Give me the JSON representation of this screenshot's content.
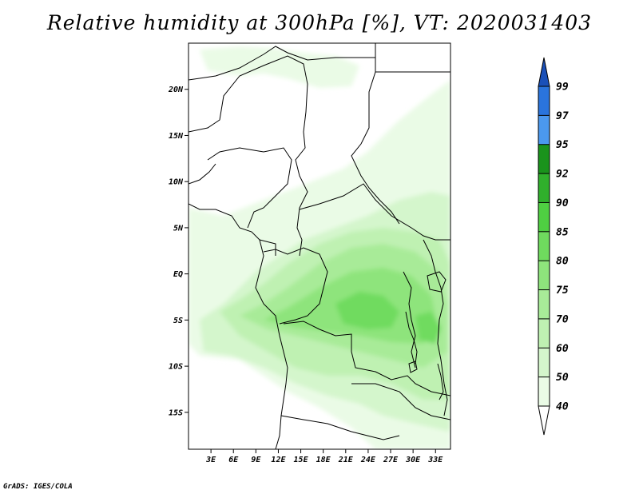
{
  "title": "Relative humidity at 300hPa [%], VT: 2020031403",
  "credit": "GrADS: IGES/COLA",
  "map": {
    "lat_range": [
      -19,
      25
    ],
    "lon_range": [
      0,
      35
    ],
    "lat_ticks": [
      {
        "value": 20,
        "label": "20N"
      },
      {
        "value": 15,
        "label": "15N"
      },
      {
        "value": 10,
        "label": "10N"
      },
      {
        "value": 5,
        "label": "5N"
      },
      {
        "value": 0,
        "label": "EQ"
      },
      {
        "value": -5,
        "label": "5S"
      },
      {
        "value": -10,
        "label": "10S"
      },
      {
        "value": -15,
        "label": "15S"
      }
    ],
    "lon_ticks": [
      {
        "value": 3,
        "label": "3E"
      },
      {
        "value": 6,
        "label": "6E"
      },
      {
        "value": 9,
        "label": "9E"
      },
      {
        "value": 12,
        "label": "12E"
      },
      {
        "value": 15,
        "label": "15E"
      },
      {
        "value": 18,
        "label": "18E"
      },
      {
        "value": 21,
        "label": "21E"
      },
      {
        "value": 24,
        "label": "24E"
      },
      {
        "value": 27,
        "label": "27E"
      },
      {
        "value": 30,
        "label": "30E"
      },
      {
        "value": 33,
        "label": "33E"
      }
    ]
  },
  "colorbar": {
    "levels": [
      {
        "label": "40",
        "color": "#eafbe6"
      },
      {
        "label": "50",
        "color": "#d4f6cc"
      },
      {
        "label": "60",
        "color": "#bff1b2"
      },
      {
        "label": "70",
        "color": "#a8eb98"
      },
      {
        "label": "75",
        "color": "#8ee47c"
      },
      {
        "label": "80",
        "color": "#6fdb5e"
      },
      {
        "label": "85",
        "color": "#4fcf42"
      },
      {
        "label": "90",
        "color": "#30b02c"
      },
      {
        "label": "92",
        "color": "#1a931c"
      },
      {
        "label": "95",
        "color": "#4b98ee"
      },
      {
        "label": "97",
        "color": "#2a74dc"
      },
      {
        "label": "99",
        "color": "#1c5bc4"
      }
    ],
    "below_color": "#ffffff",
    "above_color": "#1a50b8"
  }
}
